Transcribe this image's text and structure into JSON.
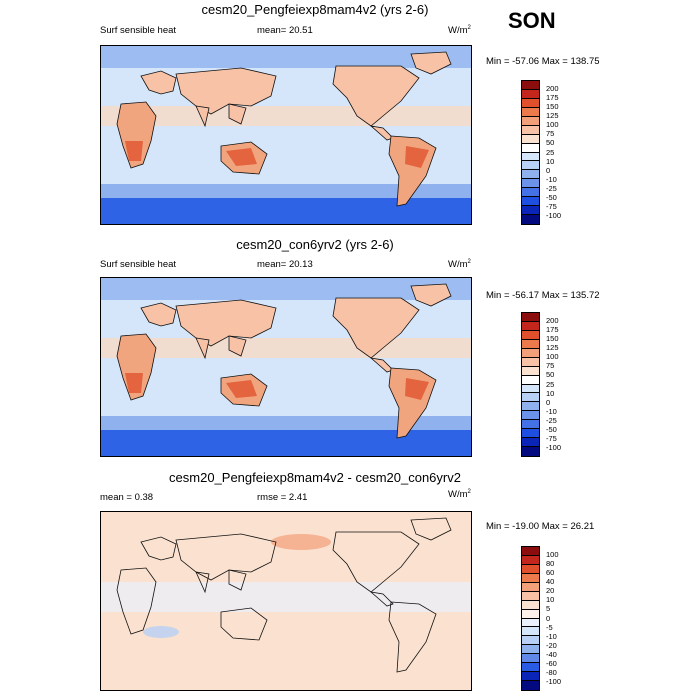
{
  "season": "SON",
  "units": "W/m",
  "units_sup": "2",
  "colors": {
    "ocean_base": "#d6e6fa",
    "land_warm": "#f1a57f",
    "land_hot": "#e3643f",
    "polar_cold": "#2f63e6",
    "storm_band": "#8fb2ef",
    "coast": "#111111"
  },
  "panels": [
    {
      "title": "cesm20_Pengfeiexp8mam4v2 (yrs 2-6)",
      "left_label": "Surf sensible heat",
      "center_label": "mean=  20.51",
      "minmax": "Min = -57.06 Max = 138.75",
      "levels": [
        "200",
        "175",
        "150",
        "125",
        "100",
        "75",
        "50",
        "25",
        "10",
        "0",
        "-10",
        "-25",
        "-50",
        "-75",
        "-100"
      ],
      "colors": [
        "#8c0d0d",
        "#c3261c",
        "#e0502d",
        "#ec7a4d",
        "#f2a07a",
        "#f7c2a6",
        "#fbe1cf",
        "#ffffff",
        "#d6e6fa",
        "#b8d0f5",
        "#8fb2ef",
        "#6b93ea",
        "#4472e6",
        "#1e4fe0",
        "#0a25b8",
        "#030a80"
      ]
    },
    {
      "title": "cesm20_con6yrv2 (yrs 2-6)",
      "left_label": "Surf sensible heat",
      "center_label": "mean=  20.13",
      "minmax": "Min = -56.17 Max = 135.72",
      "levels": [
        "200",
        "175",
        "150",
        "125",
        "100",
        "75",
        "50",
        "25",
        "10",
        "0",
        "-10",
        "-25",
        "-50",
        "-75",
        "-100"
      ],
      "colors": [
        "#8c0d0d",
        "#c3261c",
        "#e0502d",
        "#ec7a4d",
        "#f2a07a",
        "#f7c2a6",
        "#fbe1cf",
        "#ffffff",
        "#d6e6fa",
        "#b8d0f5",
        "#8fb2ef",
        "#6b93ea",
        "#4472e6",
        "#1e4fe0",
        "#0a25b8",
        "#030a80"
      ]
    },
    {
      "title": "cesm20_Pengfeiexp8mam4v2 - cesm20_con6yrv2",
      "left_label": "mean =   0.38",
      "center_label": "rmse =   2.41",
      "minmax": "Min = -19.00 Max =  26.21",
      "levels": [
        "100",
        "80",
        "60",
        "40",
        "20",
        "10",
        "5",
        "0",
        "-5",
        "-10",
        "-20",
        "-40",
        "-60",
        "-80",
        "-100"
      ],
      "colors": [
        "#8c0d0d",
        "#c3261c",
        "#e0502d",
        "#ec7a4d",
        "#f2a07a",
        "#f7c2a6",
        "#fbe1cf",
        "#fef2ea",
        "#eaf1fc",
        "#d6e6fa",
        "#b8d0f5",
        "#8fb2ef",
        "#5f88e8",
        "#2a5be3",
        "#0a25b8",
        "#030a80"
      ]
    }
  ],
  "chart_data": [
    {
      "type": "heatmap",
      "title": "cesm20_Pengfeiexp8mam4v2 (yrs 2-6)",
      "variable": "Surf sensible heat",
      "season": "SON",
      "units": "W/m2",
      "mean": 20.51,
      "min": -57.06,
      "max": 138.75,
      "contour_levels": [
        -100,
        -75,
        -50,
        -25,
        -10,
        0,
        10,
        25,
        50,
        75,
        100,
        125,
        150,
        175,
        200
      ]
    },
    {
      "type": "heatmap",
      "title": "cesm20_con6yrv2 (yrs 2-6)",
      "variable": "Surf sensible heat",
      "season": "SON",
      "units": "W/m2",
      "mean": 20.13,
      "min": -56.17,
      "max": 135.72,
      "contour_levels": [
        -100,
        -75,
        -50,
        -25,
        -10,
        0,
        10,
        25,
        50,
        75,
        100,
        125,
        150,
        175,
        200
      ]
    },
    {
      "type": "heatmap",
      "title": "cesm20_Pengfeiexp8mam4v2 - cesm20_con6yrv2",
      "season": "SON",
      "units": "W/m2",
      "mean": 0.38,
      "rmse": 2.41,
      "min": -19.0,
      "max": 26.21,
      "contour_levels": [
        -100,
        -80,
        -60,
        -40,
        -20,
        -10,
        -5,
        0,
        5,
        10,
        20,
        40,
        60,
        80,
        100
      ]
    }
  ]
}
